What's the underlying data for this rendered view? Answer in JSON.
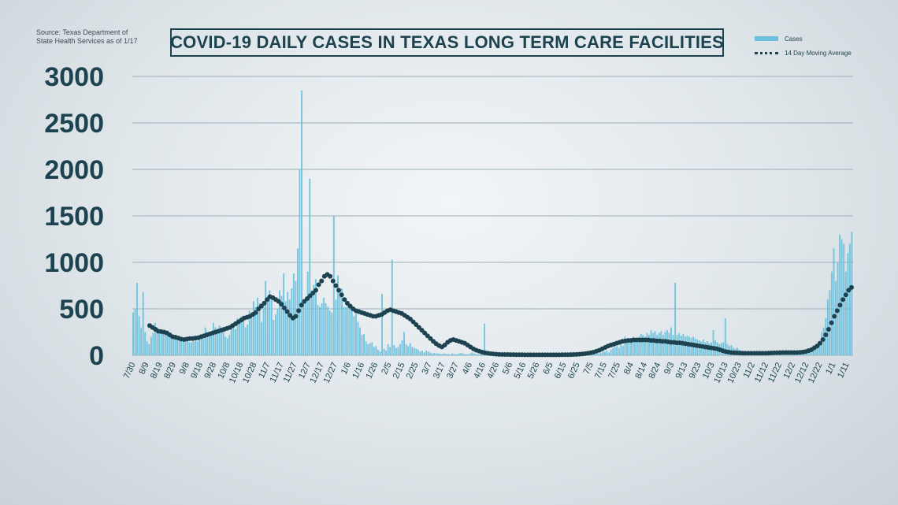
{
  "source_text": "Source: Texas Department of State Health Services as of 1/17",
  "title": "COVID-19 DAILY CASES IN TEXAS LONG TERM CARE FACILITIES",
  "legend": [
    {
      "label": "Cases",
      "style": "bar",
      "color": "#6cc0db"
    },
    {
      "label": "14 Day Moving Average",
      "style": "dotted",
      "color": "#1d4350"
    }
  ],
  "chart_data": {
    "type": "bar",
    "title": "COVID-19 DAILY CASES IN TEXAS LONG TERM CARE FACILITIES",
    "xlabel": "",
    "ylabel": "",
    "ylim": [
      0,
      3000
    ],
    "yticks": [
      0,
      500,
      1000,
      1500,
      2000,
      2500,
      3000
    ],
    "grid": true,
    "legend_position": "top-right",
    "x_tick_labels": [
      "7/30",
      "8/9",
      "8/19",
      "8/29",
      "9/8",
      "9/18",
      "9/28",
      "10/8",
      "10/18",
      "10/28",
      "11/7",
      "11/17",
      "11/27",
      "12/7",
      "12/17",
      "12/27",
      "1/6",
      "1/16",
      "1/26",
      "2/5",
      "2/15",
      "2/25",
      "3/7",
      "3/17",
      "3/27",
      "4/6",
      "4/16",
      "4/26",
      "5/6",
      "5/16",
      "5/26",
      "6/5",
      "6/15",
      "6/25",
      "7/5",
      "7/15",
      "7/25",
      "8/4",
      "8/14",
      "8/24",
      "9/3",
      "9/13",
      "9/23",
      "10/3",
      "10/13",
      "10/23",
      "11/2",
      "11/12",
      "11/22",
      "12/2",
      "12/12",
      "12/22",
      "1/1",
      "1/11"
    ],
    "series": [
      {
        "name": "Cases",
        "kind": "bar",
        "color": "#6cc0db",
        "values": [
          460,
          500,
          780,
          420,
          300,
          680,
          250,
          150,
          120,
          200,
          240,
          350,
          300,
          280,
          250,
          260,
          240,
          220,
          220,
          210,
          200,
          190,
          200,
          180,
          170,
          160,
          150,
          160,
          140,
          140,
          150,
          160,
          150,
          200,
          180,
          180,
          300,
          250,
          200,
          260,
          350,
          300,
          280,
          320,
          300,
          250,
          200,
          180,
          220,
          300,
          320,
          280,
          400,
          360,
          420,
          380,
          300,
          330,
          480,
          400,
          580,
          520,
          620,
          560,
          360,
          520,
          800,
          640,
          700,
          600,
          380,
          440,
          500,
          700,
          640,
          880,
          580,
          680,
          600,
          720,
          880,
          800,
          1150,
          2000,
          2850,
          600,
          560,
          900,
          1900,
          700,
          760,
          820,
          540,
          520,
          560,
          620,
          560,
          520,
          480,
          460,
          1500,
          600,
          860,
          680,
          720,
          520,
          520,
          580,
          540,
          480,
          420,
          460,
          360,
          300,
          220,
          230,
          150,
          120,
          130,
          140,
          90,
          100,
          60,
          40,
          660,
          70,
          50,
          120,
          90,
          1030,
          110,
          80,
          90,
          120,
          160,
          250,
          120,
          100,
          130,
          90,
          80,
          70,
          60,
          40,
          50,
          30,
          50,
          40,
          30,
          20,
          25,
          20,
          20,
          15,
          15,
          20,
          15,
          15,
          10,
          20,
          15,
          10,
          15,
          25,
          20,
          15,
          10,
          10,
          20,
          30,
          20,
          15,
          10,
          10,
          20,
          340,
          20,
          15,
          15,
          10,
          10,
          15,
          10,
          10,
          15,
          20,
          20,
          15,
          10,
          15,
          10,
          10,
          15,
          10,
          20,
          15,
          10,
          10,
          15,
          10,
          10,
          15,
          10,
          10,
          10,
          15,
          10,
          10,
          10,
          15,
          10,
          10,
          15,
          10,
          10,
          10,
          15,
          10,
          10,
          15,
          10,
          10,
          15,
          20,
          10,
          10,
          15,
          10,
          15,
          20,
          20,
          30,
          20,
          25,
          40,
          40,
          50,
          30,
          60,
          80,
          90,
          100,
          80,
          120,
          100,
          200,
          140,
          180,
          160,
          200,
          180,
          160,
          200,
          230,
          220,
          200,
          240,
          220,
          270,
          240,
          260,
          220,
          240,
          260,
          220,
          250,
          270,
          240,
          300,
          220,
          780,
          220,
          240,
          210,
          230,
          200,
          210,
          200,
          190,
          200,
          180,
          170,
          160,
          150,
          170,
          140,
          150,
          130,
          140,
          270,
          160,
          140,
          120,
          130,
          140,
          400,
          120,
          100,
          110,
          80,
          70,
          80,
          60,
          50,
          45,
          40,
          40,
          45,
          35,
          40,
          30,
          40,
          30,
          35,
          40,
          30,
          30,
          25,
          40,
          30,
          30,
          25,
          40,
          30,
          25,
          30,
          40,
          35,
          30,
          40,
          40,
          35,
          30,
          30,
          40,
          35,
          30,
          40,
          40,
          60,
          80,
          100,
          150,
          250,
          300,
          400,
          600,
          700,
          900,
          1150,
          800,
          1000,
          1300,
          1250,
          1200,
          900,
          1100,
          1200,
          1330
        ]
      },
      {
        "name": "14 Day Moving Average",
        "kind": "dotted-line",
        "color": "#1d4350",
        "values": [
          320,
          300,
          280,
          260,
          255,
          250,
          240,
          220,
          200,
          195,
          185,
          175,
          170,
          175,
          180,
          180,
          185,
          190,
          200,
          210,
          220,
          230,
          240,
          250,
          260,
          270,
          280,
          290,
          300,
          320,
          340,
          360,
          380,
          400,
          410,
          420,
          440,
          460,
          500,
          530,
          560,
          600,
          630,
          620,
          600,
          580,
          550,
          510,
          470,
          430,
          400,
          420,
          480,
          540,
          580,
          610,
          640,
          670,
          700,
          760,
          800,
          850,
          870,
          850,
          800,
          750,
          700,
          650,
          600,
          560,
          530,
          500,
          480,
          470,
          460,
          450,
          440,
          430,
          420,
          420,
          430,
          440,
          460,
          480,
          490,
          480,
          470,
          460,
          450,
          430,
          410,
          390,
          360,
          330,
          300,
          270,
          240,
          210,
          180,
          150,
          125,
          105,
          90,
          110,
          140,
          160,
          170,
          160,
          150,
          140,
          130,
          110,
          90,
          70,
          55,
          45,
          35,
          28,
          22,
          18,
          15,
          12,
          10,
          9,
          8,
          8,
          7,
          7,
          6,
          6,
          6,
          5,
          5,
          5,
          5,
          5,
          5,
          5,
          5,
          5,
          5,
          5,
          5,
          5,
          6,
          6,
          6,
          7,
          8,
          10,
          12,
          15,
          18,
          22,
          28,
          35,
          45,
          55,
          70,
          85,
          100,
          110,
          120,
          130,
          140,
          150,
          155,
          160,
          160,
          165,
          165,
          165,
          165,
          165,
          165,
          160,
          160,
          155,
          155,
          150,
          150,
          145,
          140,
          140,
          135,
          135,
          130,
          125,
          120,
          115,
          110,
          105,
          100,
          95,
          90,
          85,
          80,
          75,
          70,
          60,
          50,
          40,
          35,
          30,
          28,
          26,
          24,
          22,
          22,
          22,
          22,
          22,
          22,
          22,
          22,
          22,
          23,
          25,
          27,
          28,
          29,
          30,
          30,
          30,
          30,
          30,
          30,
          32,
          35,
          40,
          50,
          60,
          80,
          100,
          130,
          170,
          220,
          280,
          350,
          420,
          480,
          540,
          600,
          650,
          700,
          730
        ]
      }
    ]
  }
}
